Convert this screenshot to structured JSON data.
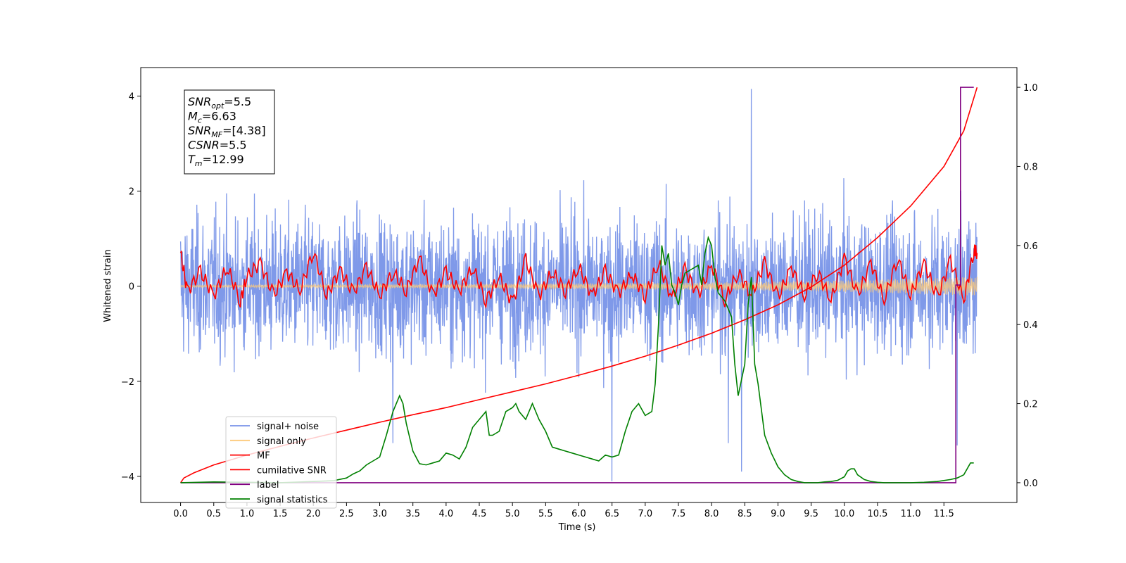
{
  "chart_data": {
    "type": "line",
    "xlabel": "Time (s)",
    "ylabel": "Whitened strain",
    "xlim": [
      -0.6,
      12.6
    ],
    "ylim": [
      -4.55,
      4.6
    ],
    "ylim_right": [
      -0.05,
      1.05
    ],
    "x_ticks": [
      "0.0",
      "0.5",
      "1.0",
      "1.5",
      "2.0",
      "2.5",
      "3.0",
      "3.5",
      "4.0",
      "4.5",
      "5.0",
      "5.5",
      "6.0",
      "6.5",
      "7.0",
      "7.5",
      "8.0",
      "8.5",
      "9.0",
      "9.5",
      "10.0",
      "10.5",
      "11.0",
      "11.5"
    ],
    "y_ticks": [
      "4",
      "2",
      "0",
      "−2",
      "−4"
    ],
    "y_ticks_right": [
      "1.0",
      "0.8",
      "0.6",
      "0.4",
      "0.2",
      "0.0"
    ],
    "legend": {
      "placement": "lower-left",
      "entries": [
        {
          "label": "signal+ noise",
          "color": "#7893e8"
        },
        {
          "label": "signal only",
          "color": "#fdc97a"
        },
        {
          "label": "MF",
          "color": "#ff0000"
        },
        {
          "label": "cumilative SNR",
          "color": "#ff0000"
        },
        {
          "label": "label",
          "color": "#800080"
        },
        {
          "label": "signal statistics",
          "color": "#008000"
        }
      ]
    },
    "annotation": [
      {
        "var": "SNR",
        "sub": "opt",
        "value": "=5.5"
      },
      {
        "var": "M",
        "sub": "c",
        "value": "=6.63"
      },
      {
        "var": "SNR",
        "sub": "MF",
        "value": "=[4.38]"
      },
      {
        "var": "CSNR",
        "sub": "",
        "value": "=5.5"
      },
      {
        "var": "T",
        "sub": "m",
        "value": "=12.99"
      }
    ],
    "series": [
      {
        "name": "signal+ noise",
        "axis": "left",
        "color": "#7893e8",
        "note": "noise band approx amplitude ±2.5 with spikes to 4.2 and -4.1",
        "spikes": [
          [
            8.6,
            4.15
          ],
          [
            6.5,
            -4.1
          ],
          [
            8.45,
            -3.9
          ],
          [
            11.7,
            -3.35
          ],
          [
            3.2,
            -3.3
          ],
          [
            8.25,
            -3.3
          ]
        ]
      },
      {
        "name": "signal only",
        "axis": "left",
        "color": "#fdc97a",
        "x": [
          0.0,
          2.0,
          4.0,
          6.0,
          8.0,
          10.0,
          11.5,
          12.0
        ],
        "amplitude": [
          0.02,
          0.03,
          0.04,
          0.06,
          0.08,
          0.12,
          0.18,
          0.2
        ]
      },
      {
        "name": "MF",
        "axis": "left",
        "color": "#ff0000",
        "x": [
          0.0,
          0.1,
          0.3,
          0.5,
          0.7,
          0.9,
          1.0,
          1.2,
          1.4,
          1.6,
          1.8,
          2.0,
          2.2,
          2.4,
          2.6,
          2.8,
          3.0,
          3.2,
          3.4,
          3.6,
          3.8,
          4.0,
          4.2,
          4.4,
          4.6,
          4.8,
          5.0,
          5.2,
          5.4,
          5.6,
          5.8,
          6.0,
          6.2,
          6.4,
          6.6,
          6.8,
          7.0,
          7.2,
          7.4,
          7.6,
          7.8,
          8.0,
          8.2,
          8.4,
          8.6,
          8.8,
          9.0,
          9.2,
          9.4,
          9.6,
          9.8,
          10.0,
          10.2,
          10.4,
          10.6,
          10.8,
          11.0,
          11.2,
          11.4,
          11.6,
          11.8,
          11.95,
          12.0
        ],
        "y": [
          0.7,
          -0.1,
          0.3,
          -0.2,
          0.4,
          -0.3,
          0.2,
          0.5,
          -0.2,
          0.3,
          -0.1,
          0.75,
          -0.2,
          0.35,
          -0.15,
          0.4,
          -0.2,
          0.3,
          -0.1,
          0.6,
          -0.2,
          0.3,
          -0.1,
          0.4,
          -0.3,
          0.2,
          -0.35,
          0.55,
          -0.2,
          0.3,
          -0.1,
          0.4,
          -0.2,
          0.3,
          -0.15,
          0.25,
          -0.2,
          0.5,
          -0.25,
          0.35,
          -0.2,
          0.45,
          -0.3,
          0.3,
          -0.2,
          0.5,
          -0.25,
          0.4,
          -0.2,
          0.3,
          -0.3,
          0.6,
          -0.2,
          0.5,
          -0.3,
          0.6,
          -0.2,
          0.5,
          -0.25,
          0.55,
          -0.3,
          0.75,
          0.7
        ]
      },
      {
        "name": "cumilative SNR",
        "axis": "right",
        "color": "#ff0000",
        "x": [
          0.0,
          0.05,
          0.2,
          0.5,
          1.0,
          1.5,
          2.0,
          2.5,
          3.0,
          3.5,
          4.0,
          4.5,
          5.0,
          5.5,
          6.0,
          6.5,
          7.0,
          7.5,
          8.0,
          8.5,
          9.0,
          9.5,
          10.0,
          10.5,
          11.0,
          11.5,
          11.8,
          12.0
        ],
        "y": [
          0.0,
          0.012,
          0.025,
          0.045,
          0.07,
          0.092,
          0.113,
          0.133,
          0.153,
          0.172,
          0.19,
          0.21,
          0.23,
          0.25,
          0.272,
          0.295,
          0.32,
          0.348,
          0.378,
          0.412,
          0.45,
          0.495,
          0.55,
          0.62,
          0.7,
          0.8,
          0.89,
          1.0
        ]
      },
      {
        "name": "label",
        "axis": "right",
        "color": "#800080",
        "x": [
          0.0,
          11.68,
          11.68,
          11.75,
          11.75,
          11.95
        ],
        "y": [
          0.0,
          0.0,
          0.5,
          0.5,
          1.0,
          1.0
        ]
      },
      {
        "name": "signal statistics",
        "axis": "right",
        "color": "#008000",
        "x": [
          0.0,
          0.5,
          1.0,
          1.5,
          2.0,
          2.3,
          2.5,
          2.6,
          2.7,
          2.8,
          2.9,
          3.0,
          3.1,
          3.2,
          3.3,
          3.35,
          3.4,
          3.5,
          3.6,
          3.7,
          3.8,
          3.9,
          4.0,
          4.1,
          4.2,
          4.3,
          4.4,
          4.5,
          4.6,
          4.65,
          4.7,
          4.8,
          4.9,
          5.0,
          5.05,
          5.1,
          5.2,
          5.3,
          5.4,
          5.5,
          5.6,
          5.7,
          5.8,
          5.9,
          6.0,
          6.1,
          6.2,
          6.3,
          6.4,
          6.5,
          6.6,
          6.7,
          6.8,
          6.9,
          7.0,
          7.1,
          7.15,
          7.2,
          7.25,
          7.3,
          7.35,
          7.4,
          7.45,
          7.5,
          7.55,
          7.6,
          7.7,
          7.8,
          7.85,
          7.9,
          7.95,
          8.0,
          8.05,
          8.1,
          8.2,
          8.3,
          8.35,
          8.4,
          8.45,
          8.5,
          8.55,
          8.6,
          8.65,
          8.7,
          8.8,
          8.9,
          9.0,
          9.1,
          9.2,
          9.3,
          9.4,
          9.5,
          9.6,
          9.7,
          9.8,
          9.9,
          10.0,
          10.05,
          10.1,
          10.15,
          10.2,
          10.3,
          10.4,
          10.5,
          10.6,
          10.8,
          11.0,
          11.2,
          11.4,
          11.6,
          11.7,
          11.8,
          11.9,
          11.95
        ],
        "y": [
          0.0,
          0.002,
          0.001,
          0.0,
          0.003,
          0.005,
          0.012,
          0.022,
          0.03,
          0.045,
          0.055,
          0.065,
          0.12,
          0.18,
          0.22,
          0.2,
          0.15,
          0.08,
          0.048,
          0.045,
          0.05,
          0.055,
          0.075,
          0.07,
          0.06,
          0.09,
          0.14,
          0.16,
          0.18,
          0.12,
          0.12,
          0.13,
          0.18,
          0.19,
          0.2,
          0.18,
          0.16,
          0.2,
          0.16,
          0.13,
          0.09,
          0.085,
          0.08,
          0.075,
          0.07,
          0.065,
          0.06,
          0.055,
          0.07,
          0.065,
          0.07,
          0.13,
          0.18,
          0.2,
          0.17,
          0.18,
          0.25,
          0.4,
          0.6,
          0.55,
          0.58,
          0.5,
          0.48,
          0.45,
          0.5,
          0.53,
          0.54,
          0.55,
          0.5,
          0.58,
          0.62,
          0.6,
          0.52,
          0.48,
          0.46,
          0.42,
          0.3,
          0.22,
          0.26,
          0.3,
          0.45,
          0.52,
          0.3,
          0.25,
          0.12,
          0.075,
          0.04,
          0.02,
          0.008,
          0.003,
          0.0,
          0.0,
          0.0,
          0.002,
          0.003,
          0.006,
          0.015,
          0.03,
          0.035,
          0.035,
          0.02,
          0.008,
          0.003,
          0.001,
          0.0,
          0.0,
          0.0,
          0.001,
          0.003,
          0.008,
          0.012,
          0.02,
          0.05,
          0.05
        ]
      }
    ]
  }
}
